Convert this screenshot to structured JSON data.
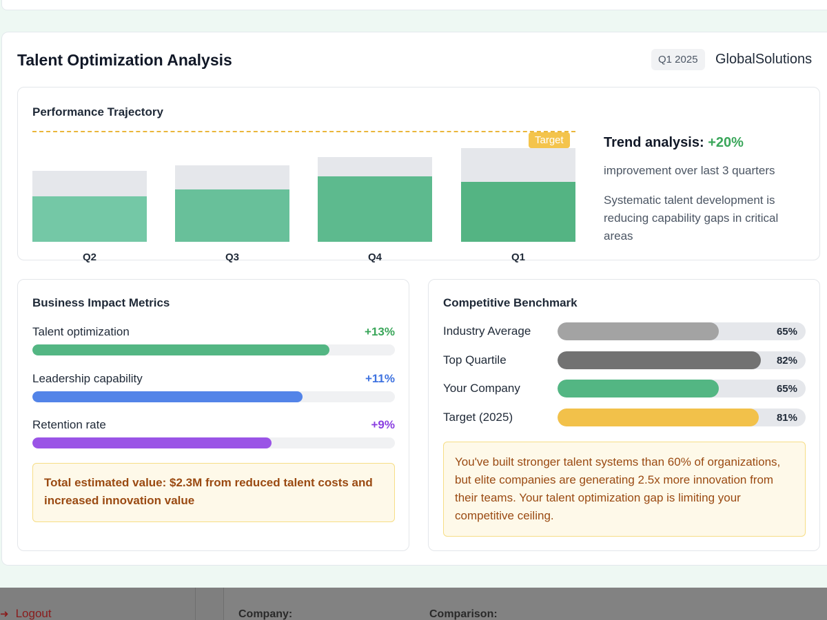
{
  "header": {
    "title": "Talent Optimization Analysis",
    "quarter": "Q1 2025",
    "company": "GlobalSolutions"
  },
  "performance": {
    "title": "Performance Trajectory",
    "target_label": "Target",
    "target_value": 100,
    "bars": [
      {
        "label": "Q2",
        "value": 42,
        "total": 65,
        "color": "#74c8a6"
      },
      {
        "label": "Q3",
        "value": 48,
        "total": 70,
        "color": "#68c09a"
      },
      {
        "label": "Q4",
        "value": 60,
        "total": 78,
        "color": "#5dba8e"
      },
      {
        "label": "Q1",
        "value": 55,
        "total": 86,
        "color": "#54b483"
      }
    ],
    "trend_label": "Trend analysis:",
    "trend_value": "+20%",
    "trend_sub": "improvement over last 3 quarters",
    "trend_desc": "Systematic talent development is reducing capability gaps in critical areas"
  },
  "impact": {
    "title": "Business Impact Metrics",
    "metrics": [
      {
        "label": "Talent optimization",
        "value": "+13%",
        "fill": 0.82,
        "color": "#53b683",
        "value_color": "#3aa65a"
      },
      {
        "label": "Leadership capability",
        "value": "+11%",
        "fill": 0.745,
        "color": "#5384e8",
        "value_color": "#3f73e0"
      },
      {
        "label": "Retention rate",
        "value": "+9%",
        "fill": 0.66,
        "color": "#9a54e6",
        "value_color": "#8a3fe0"
      }
    ],
    "note": "Total estimated value: $2.3M from reduced talent costs and increased innovation value"
  },
  "benchmark": {
    "title": "Competitive Benchmark",
    "rows": [
      {
        "label": "Industry Average",
        "value": "65%",
        "fill": 0.65,
        "color": "#a3a3a3"
      },
      {
        "label": "Top Quartile",
        "value": "82%",
        "fill": 0.82,
        "color": "#727272"
      },
      {
        "label": "Your Company",
        "value": "65%",
        "fill": 0.65,
        "color": "#53b683"
      },
      {
        "label": "Target (2025)",
        "value": "81%",
        "fill": 0.81,
        "color": "#f2c14a"
      }
    ],
    "note": "You've built stronger talent systems than 60% of organizations, but elite companies are generating 2.5x more innovation from their teams. Your talent optimization gap is limiting your competitive ceiling."
  },
  "background": {
    "logout_label": "Logout",
    "company_field": "Company:",
    "comparison_field": "Comparison:"
  }
}
